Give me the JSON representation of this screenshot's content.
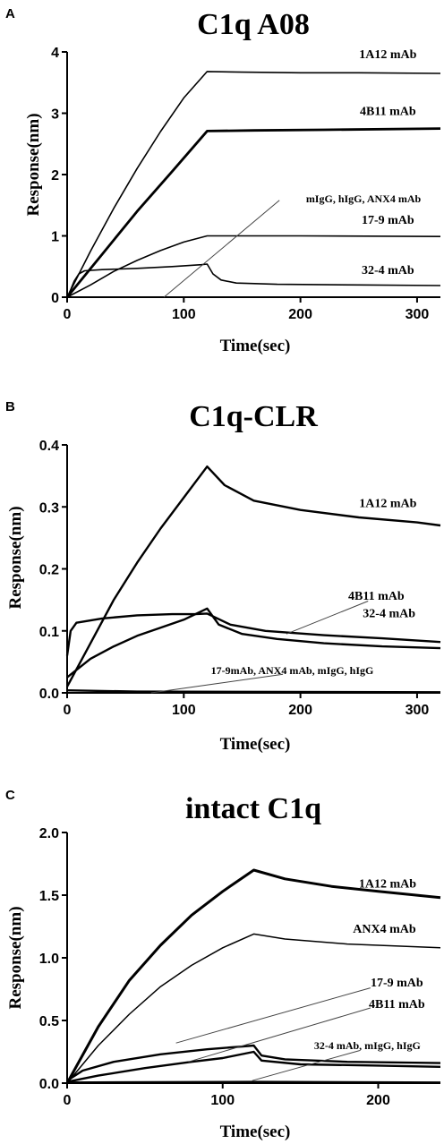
{
  "chart_data": [
    {
      "type": "line",
      "panel": "A",
      "title": "C1q A08",
      "xlabel": "Time(sec)",
      "ylabel": "Response(nm)",
      "xlim": [
        0,
        320
      ],
      "ylim": [
        0,
        4
      ],
      "xticks": [
        "0",
        "100",
        "200",
        "300"
      ],
      "yticks": [
        "0",
        "1",
        "2",
        "3",
        "4"
      ],
      "grid": false,
      "series": [
        {
          "name": "1A12 mAb",
          "label": "1A12 mAb",
          "width": 1.6,
          "points": [
            [
              0,
              0
            ],
            [
              20,
              0.75
            ],
            [
              40,
              1.45
            ],
            [
              60,
              2.1
            ],
            [
              80,
              2.7
            ],
            [
              100,
              3.25
            ],
            [
              120,
              3.68
            ],
            [
              150,
              3.67
            ],
            [
              200,
              3.66
            ],
            [
              250,
              3.66
            ],
            [
              320,
              3.65
            ]
          ]
        },
        {
          "name": "4B11 mAb",
          "label": "4B11 mAb",
          "width": 2.8,
          "points": [
            [
              0,
              0
            ],
            [
              30,
              0.7
            ],
            [
              60,
              1.4
            ],
            [
              90,
              2.05
            ],
            [
              120,
              2.71
            ],
            [
              160,
              2.72
            ],
            [
              220,
              2.73
            ],
            [
              320,
              2.75
            ]
          ]
        },
        {
          "name": "17-9 mAb",
          "label": "17-9 mAb",
          "width": 1.6,
          "points": [
            [
              0,
              0
            ],
            [
              20,
              0.2
            ],
            [
              40,
              0.42
            ],
            [
              60,
              0.6
            ],
            [
              80,
              0.76
            ],
            [
              100,
              0.9
            ],
            [
              120,
              1.0
            ],
            [
              200,
              1.0
            ],
            [
              320,
              0.99
            ]
          ]
        },
        {
          "name": "32-4 mAb",
          "label": "32-4 mAb",
          "width": 1.6,
          "points": [
            [
              0,
              0
            ],
            [
              3,
              0.12
            ],
            [
              6,
              0.26
            ],
            [
              10,
              0.38
            ],
            [
              15,
              0.43
            ],
            [
              30,
              0.45
            ],
            [
              60,
              0.47
            ],
            [
              90,
              0.5
            ],
            [
              115,
              0.53
            ],
            [
              120,
              0.54
            ],
            [
              125,
              0.38
            ],
            [
              132,
              0.28
            ],
            [
              145,
              0.23
            ],
            [
              180,
              0.21
            ],
            [
              250,
              0.2
            ],
            [
              320,
              0.19
            ]
          ]
        },
        {
          "name": "mIgG, hIgG, ANX4 mAb",
          "label": "mIgG, hIgG, ANX4 mAb",
          "width": 1.6,
          "points": [
            [
              0,
              0
            ],
            [
              320,
              0
            ]
          ]
        }
      ],
      "annotations": [
        {
          "text": "1A12 mAb",
          "x": 275,
          "y": 3.9
        },
        {
          "text": "4B11 mAb",
          "x": 275,
          "y": 2.97
        },
        {
          "text": "mIgG, hIgG, ANX4 mAb",
          "x": 254,
          "y": 1.55
        },
        {
          "text": "17-9 mAb",
          "x": 275,
          "y": 1.2
        },
        {
          "text": "32-4 mAb",
          "x": 275,
          "y": 0.38
        }
      ],
      "leader": [
        [
          83,
          0
        ],
        [
          182,
          1.58
        ]
      ]
    },
    {
      "type": "line",
      "panel": "B",
      "title": "C1q-CLR",
      "xlabel": "Time(sec)",
      "ylabel": "Response(nm)",
      "xlim": [
        0,
        320
      ],
      "ylim": [
        0,
        0.4
      ],
      "xticks": [
        "0",
        "100",
        "200",
        "300"
      ],
      "yticks": [
        "0.0",
        "0.1",
        "0.2",
        "0.3",
        "0.4"
      ],
      "grid": false,
      "series": [
        {
          "name": "1A12 mAb",
          "label": "1A12 mAb",
          "width": 2.4,
          "points": [
            [
              0,
              0.01
            ],
            [
              20,
              0.08
            ],
            [
              40,
              0.15
            ],
            [
              60,
              0.21
            ],
            [
              80,
              0.265
            ],
            [
              100,
              0.315
            ],
            [
              120,
              0.365
            ],
            [
              135,
              0.335
            ],
            [
              160,
              0.31
            ],
            [
              200,
              0.295
            ],
            [
              250,
              0.283
            ],
            [
              300,
              0.275
            ],
            [
              320,
              0.27
            ]
          ]
        },
        {
          "name": "4B11 mAb",
          "label": "4B11 mAb",
          "width": 2.4,
          "points": [
            [
              0,
              0.06
            ],
            [
              3,
              0.1
            ],
            [
              8,
              0.113
            ],
            [
              30,
              0.12
            ],
            [
              60,
              0.125
            ],
            [
              90,
              0.127
            ],
            [
              110,
              0.127
            ],
            [
              120,
              0.128
            ],
            [
              140,
              0.11
            ],
            [
              170,
              0.1
            ],
            [
              220,
              0.093
            ],
            [
              270,
              0.088
            ],
            [
              320,
              0.082
            ]
          ]
        },
        {
          "name": "32-4 mAb",
          "label": "32-4 mAb",
          "width": 2.4,
          "points": [
            [
              0,
              0.025
            ],
            [
              20,
              0.055
            ],
            [
              40,
              0.075
            ],
            [
              60,
              0.092
            ],
            [
              80,
              0.105
            ],
            [
              100,
              0.118
            ],
            [
              120,
              0.136
            ],
            [
              130,
              0.11
            ],
            [
              150,
              0.095
            ],
            [
              180,
              0.087
            ],
            [
              220,
              0.08
            ],
            [
              270,
              0.075
            ],
            [
              320,
              0.072
            ]
          ]
        },
        {
          "name": "17-9mAb, ANX4 mAb, mIgG, hIgG",
          "label": "17-9mAb, ANX4 mAb, mIgG, hIgG",
          "width": 2.4,
          "points": [
            [
              0,
              0.004
            ],
            [
              60,
              0.002
            ],
            [
              320,
              0.001
            ]
          ]
        }
      ],
      "annotations": [
        {
          "text": "1A12 mAb",
          "x": 275,
          "y": 0.3
        },
        {
          "text": "4B11 mAb",
          "x": 265,
          "y": 0.15
        },
        {
          "text": "32-4 mAb",
          "x": 276,
          "y": 0.122
        },
        {
          "text": "17-9mAb, ANX4 mAb, mIgG, hIgG",
          "x": 193,
          "y": 0.03
        }
      ],
      "leader": [
        [
          188,
          0.095
        ],
        [
          258,
          0.148
        ]
      ],
      "leader2": [
        [
          72,
          0
        ],
        [
          185,
          0.03
        ]
      ]
    },
    {
      "type": "line",
      "panel": "C",
      "title": "intact C1q",
      "xlabel": "Time(sec)",
      "ylabel": "Response(nm)",
      "xlim": [
        0,
        240
      ],
      "ylim": [
        0,
        2.0
      ],
      "xticks": [
        "0",
        "100",
        "200"
      ],
      "yticks": [
        "0.0",
        "0.5",
        "1.0",
        "1.5",
        "2.0"
      ],
      "grid": false,
      "series": [
        {
          "name": "1A12 mAb",
          "label": "1A12 mAb",
          "width": 3.0,
          "points": [
            [
              0,
              0
            ],
            [
              20,
              0.45
            ],
            [
              40,
              0.82
            ],
            [
              60,
              1.1
            ],
            [
              80,
              1.34
            ],
            [
              100,
              1.53
            ],
            [
              120,
              1.7
            ],
            [
              140,
              1.63
            ],
            [
              170,
              1.57
            ],
            [
              200,
              1.53
            ],
            [
              240,
              1.48
            ]
          ]
        },
        {
          "name": "ANX4 mAb",
          "label": "ANX4 mAb",
          "width": 1.5,
          "points": [
            [
              0,
              0
            ],
            [
              20,
              0.3
            ],
            [
              40,
              0.55
            ],
            [
              60,
              0.77
            ],
            [
              80,
              0.94
            ],
            [
              100,
              1.08
            ],
            [
              120,
              1.19
            ],
            [
              140,
              1.15
            ],
            [
              180,
              1.11
            ],
            [
              240,
              1.08
            ]
          ]
        },
        {
          "name": "17-9 mAb",
          "label": "17-9 mAb",
          "width": 2.4,
          "points": [
            [
              0,
              0.02
            ],
            [
              10,
              0.1
            ],
            [
              30,
              0.17
            ],
            [
              60,
              0.23
            ],
            [
              90,
              0.27
            ],
            [
              110,
              0.29
            ],
            [
              120,
              0.3
            ],
            [
              125,
              0.22
            ],
            [
              140,
              0.19
            ],
            [
              180,
              0.17
            ],
            [
              240,
              0.16
            ]
          ]
        },
        {
          "name": "4B11 mAb",
          "label": "4B11 mAb",
          "width": 2.4,
          "points": [
            [
              0,
              0.01
            ],
            [
              20,
              0.06
            ],
            [
              50,
              0.12
            ],
            [
              80,
              0.17
            ],
            [
              100,
              0.2
            ],
            [
              120,
              0.25
            ],
            [
              125,
              0.18
            ],
            [
              150,
              0.15
            ],
            [
              200,
              0.14
            ],
            [
              240,
              0.13
            ]
          ]
        },
        {
          "name": "32-4 mAb, mIgG, hIgG",
          "label": "32-4 mAb, mIgG, hIgG",
          "width": 2.4,
          "points": [
            [
              0,
              0.005
            ],
            [
              120,
              0.01
            ],
            [
              240,
              0.005
            ]
          ]
        }
      ],
      "annotations": [
        {
          "text": "1A12 mAb",
          "x": 206,
          "y": 1.56
        },
        {
          "text": "ANX4 mAb",
          "x": 204,
          "y": 1.2
        },
        {
          "text": "17-9 mAb",
          "x": 212,
          "y": 0.77
        },
        {
          "text": "4B11 mAb",
          "x": 212,
          "y": 0.6
        },
        {
          "text": "32-4 mAb, mIgG, hIgG",
          "x": 193,
          "y": 0.27
        }
      ],
      "leaders": [
        [
          [
            70,
            0.32
          ],
          [
            195,
            0.76
          ]
        ],
        [
          [
            78,
            0.17
          ],
          [
            195,
            0.6
          ]
        ],
        [
          [
            119,
            0.02
          ],
          [
            188,
            0.26
          ]
        ]
      ]
    }
  ]
}
